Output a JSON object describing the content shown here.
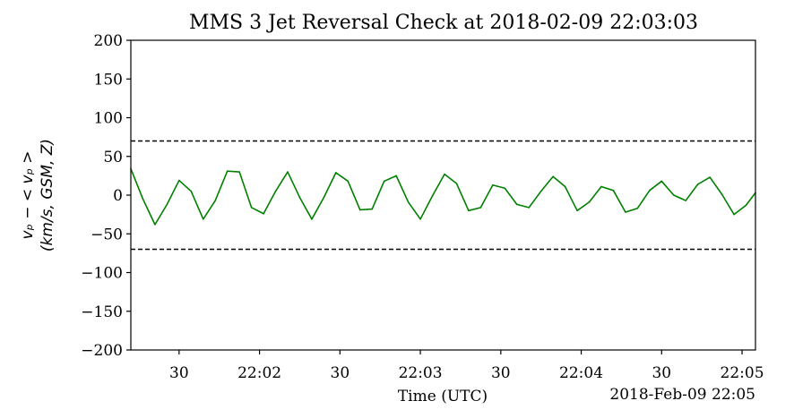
{
  "chart_data": {
    "type": "line",
    "title": "MMS 3 Jet Reversal Check at 2018-02-09 22:03:03",
    "xlabel": "Time (UTC)",
    "ylabel_line1": "vₚ − < vₚ >",
    "ylabel_line2": "(km/s, GSM, Z)",
    "x_corner_label": "2018-Feb-09 22:05",
    "x_axis_units": "seconds after 22:01:00",
    "xlim": [
      12,
      245
    ],
    "ylim": [
      -200,
      200
    ],
    "yticks": [
      200,
      150,
      100,
      50,
      0,
      -50,
      -100,
      -150,
      -200
    ],
    "ytick_labels": [
      "200",
      "150",
      "100",
      "50",
      "0",
      "−50",
      "−100",
      "−150",
      "−200"
    ],
    "xticks": [
      30,
      60,
      90,
      120,
      150,
      180,
      210,
      240
    ],
    "xtick_labels": [
      "30",
      "22:02",
      "30",
      "22:03",
      "30",
      "22:04",
      "30",
      "22:05"
    ],
    "grid": false,
    "thresholds": [
      70,
      -70
    ],
    "series": [
      {
        "color": "#008000",
        "x": [
          12.0,
          16.5,
          21.0,
          25.5,
          30.0,
          34.5,
          39.0,
          43.5,
          48.0,
          52.5,
          57.0,
          61.5,
          66.0,
          70.5,
          75.0,
          79.5,
          84.0,
          88.5,
          93.0,
          97.5,
          102.0,
          106.5,
          111.0,
          115.5,
          120.0,
          124.5,
          129.0,
          133.5,
          138.0,
          142.5,
          147.0,
          151.5,
          156.0,
          160.5,
          165.0,
          169.5,
          174.0,
          178.5,
          183.0,
          187.5,
          192.0,
          196.5,
          201.0,
          205.5,
          210.0,
          214.5,
          219.0,
          223.5,
          228.0,
          232.5,
          237.0,
          241.5,
          245.0
        ],
        "y": [
          34,
          -5,
          -38,
          -12,
          19,
          5,
          -31,
          -7,
          31,
          30,
          -16,
          -24,
          5,
          30,
          -3,
          -31,
          -3,
          29,
          18,
          -19,
          -18,
          18,
          25,
          -9,
          -31,
          -1,
          27,
          15,
          -20,
          -16,
          13,
          9,
          -12,
          -16,
          5,
          24,
          11,
          -20,
          -9,
          11,
          6,
          -22,
          -17,
          6,
          18,
          0,
          -7,
          14,
          23,
          1,
          -25,
          -13,
          3
        ]
      }
    ]
  }
}
